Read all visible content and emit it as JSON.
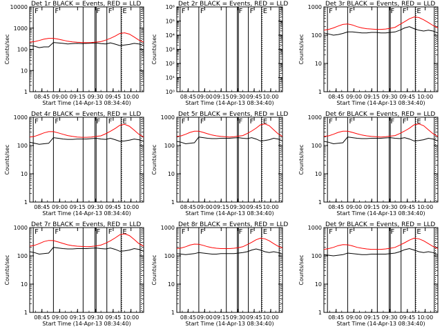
{
  "chart_data": {
    "type": "line",
    "y_scale": "log",
    "ylabel": "Counts/sec",
    "xlabel": "Start Time (14-Apr-13 08:34:40)",
    "x_tick_labels": [
      "08:45",
      "09:00",
      "09:15",
      "09:30",
      "09:45",
      "10:00"
    ],
    "x_tick_minutes": [
      10.33,
      25.33,
      40.33,
      55.33,
      70.33,
      85.33
    ],
    "xlim_minutes": [
      0,
      96
    ],
    "series_colors": {
      "events": "#000000",
      "lld": "#ff0000"
    },
    "time_x": [
      0,
      4,
      8,
      12,
      16,
      20,
      24,
      28,
      32,
      36,
      40,
      44,
      48,
      52,
      56,
      60,
      64,
      68,
      72,
      76,
      80,
      84,
      88,
      92,
      96
    ],
    "vlines_minutes": [
      {
        "t": 3,
        "label": "F"
      },
      {
        "t": 20,
        "label": "F"
      },
      {
        "t": 45,
        "label": ""
      },
      {
        "t": 55,
        "label": "F"
      },
      {
        "t": 56,
        "label": ""
      },
      {
        "t": 65,
        "label": "F"
      },
      {
        "t": 77,
        "label": "E"
      },
      {
        "t": 93,
        "label": ""
      }
    ],
    "dotted_vline_minutes": [
      77.5,
      94
    ],
    "panels": [
      {
        "title": "Det 1r BLACK = Events, RED = LLD",
        "ylim": [
          1,
          10000
        ],
        "y_tick_labels": [
          "1",
          "10",
          "100",
          "1000",
          "10000"
        ],
        "has_data": true,
        "events": [
          150,
          140,
          120,
          130,
          130,
          210,
          200,
          190,
          180,
          185,
          190,
          185,
          190,
          195,
          200,
          185,
          180,
          200,
          175,
          150,
          160,
          170,
          190,
          180,
          150
        ],
        "lld": [
          220,
          230,
          260,
          300,
          330,
          330,
          300,
          270,
          240,
          225,
          215,
          210,
          205,
          210,
          220,
          230,
          270,
          330,
          420,
          560,
          600,
          520,
          380,
          270,
          220
        ]
      },
      {
        "title": "Det 2r BLACK = Events, RED = LLD",
        "ylim": [
          1,
          1000000
        ],
        "y_tick_labels": [
          "10⁰",
          "10¹",
          "10²",
          "10³",
          "10⁴",
          "10⁵",
          "10⁶"
        ],
        "has_data": false,
        "events": [],
        "lld": []
      },
      {
        "title": "Det 3r BLACK = Events, RED = LLD",
        "ylim": [
          1,
          1000
        ],
        "y_tick_labels": [
          "1",
          "10",
          "100",
          "1000"
        ],
        "has_data": true,
        "events": [
          120,
          110,
          100,
          105,
          115,
          130,
          130,
          125,
          120,
          120,
          125,
          125,
          120,
          120,
          125,
          130,
          150,
          180,
          200,
          170,
          150,
          140,
          150,
          140,
          120
        ],
        "lld": [
          150,
          160,
          180,
          210,
          240,
          250,
          230,
          200,
          180,
          170,
          165,
          160,
          160,
          165,
          175,
          190,
          240,
          300,
          380,
          440,
          420,
          350,
          280,
          220,
          180
        ]
      },
      {
        "title": "Det 4r BLACK = Events, RED = LLD",
        "ylim": [
          1,
          1000
        ],
        "y_tick_labels": [
          "1",
          "10",
          "100",
          "1000"
        ],
        "has_data": true,
        "events": [
          130,
          120,
          110,
          115,
          120,
          190,
          180,
          170,
          165,
          165,
          170,
          170,
          170,
          175,
          180,
          170,
          165,
          180,
          160,
          140,
          145,
          155,
          170,
          160,
          140
        ],
        "lld": [
          200,
          210,
          240,
          280,
          310,
          310,
          280,
          250,
          225,
          210,
          200,
          195,
          195,
          200,
          210,
          220,
          260,
          320,
          400,
          520,
          560,
          480,
          350,
          250,
          200
        ]
      },
      {
        "title": "Det 5r BLACK = Events, RED = LLD",
        "ylim": [
          1,
          1000
        ],
        "y_tick_labels": [
          "1",
          "10",
          "100",
          "1000"
        ],
        "has_data": true,
        "events": [
          140,
          130,
          115,
          120,
          125,
          200,
          190,
          180,
          175,
          175,
          180,
          180,
          180,
          185,
          190,
          180,
          175,
          190,
          170,
          145,
          150,
          160,
          180,
          170,
          145
        ],
        "lld": [
          210,
          220,
          250,
          290,
          320,
          320,
          290,
          260,
          235,
          220,
          210,
          205,
          200,
          205,
          215,
          225,
          265,
          325,
          410,
          540,
          580,
          500,
          360,
          260,
          210
        ]
      },
      {
        "title": "Det 6r BLACK = Events, RED = LLD",
        "ylim": [
          1,
          1000
        ],
        "y_tick_labels": [
          "1",
          "10",
          "100",
          "1000"
        ],
        "has_data": true,
        "events": [
          140,
          130,
          115,
          120,
          125,
          200,
          190,
          180,
          175,
          175,
          180,
          180,
          180,
          185,
          190,
          180,
          175,
          190,
          170,
          145,
          150,
          160,
          180,
          170,
          145
        ],
        "lld": [
          210,
          220,
          250,
          290,
          320,
          320,
          290,
          260,
          235,
          220,
          210,
          205,
          200,
          205,
          215,
          225,
          265,
          325,
          410,
          540,
          580,
          500,
          360,
          260,
          210
        ]
      },
      {
        "title": "Det 7r BLACK = Events, RED = LLD",
        "ylim": [
          1,
          1000
        ],
        "y_tick_labels": [
          "1",
          "10",
          "100",
          "1000"
        ],
        "has_data": true,
        "events": [
          140,
          130,
          115,
          120,
          125,
          200,
          190,
          180,
          175,
          175,
          180,
          180,
          180,
          185,
          190,
          180,
          175,
          190,
          170,
          145,
          150,
          160,
          180,
          170,
          145
        ],
        "lld": [
          220,
          235,
          270,
          320,
          350,
          345,
          310,
          275,
          245,
          230,
          220,
          215,
          210,
          215,
          225,
          240,
          280,
          340,
          430,
          560,
          600,
          520,
          380,
          270,
          220
        ]
      },
      {
        "title": "Det 8r BLACK = Events, RED = LLD",
        "ylim": [
          1,
          1000
        ],
        "y_tick_labels": [
          "1",
          "10",
          "100",
          "1000"
        ],
        "has_data": true,
        "events": [
          120,
          115,
          110,
          115,
          120,
          130,
          125,
          120,
          115,
          115,
          120,
          120,
          120,
          120,
          125,
          130,
          140,
          160,
          175,
          160,
          140,
          130,
          140,
          130,
          115
        ],
        "lld": [
          180,
          190,
          210,
          240,
          260,
          255,
          235,
          210,
          195,
          185,
          180,
          180,
          180,
          185,
          195,
          210,
          250,
          300,
          370,
          420,
          400,
          340,
          270,
          220,
          190
        ]
      },
      {
        "title": "Det 9r BLACK = Events, RED = LLD",
        "ylim": [
          1,
          1000
        ],
        "y_tick_labels": [
          "1",
          "10",
          "100",
          "1000"
        ],
        "has_data": true,
        "events": [
          110,
          105,
          100,
          105,
          110,
          125,
          120,
          115,
          110,
          110,
          115,
          115,
          115,
          115,
          120,
          125,
          140,
          165,
          180,
          160,
          140,
          130,
          140,
          130,
          110
        ],
        "lld": [
          170,
          180,
          200,
          230,
          250,
          245,
          225,
          200,
          185,
          175,
          170,
          170,
          170,
          175,
          185,
          200,
          240,
          290,
          360,
          420,
          400,
          340,
          270,
          215,
          180
        ]
      }
    ]
  }
}
